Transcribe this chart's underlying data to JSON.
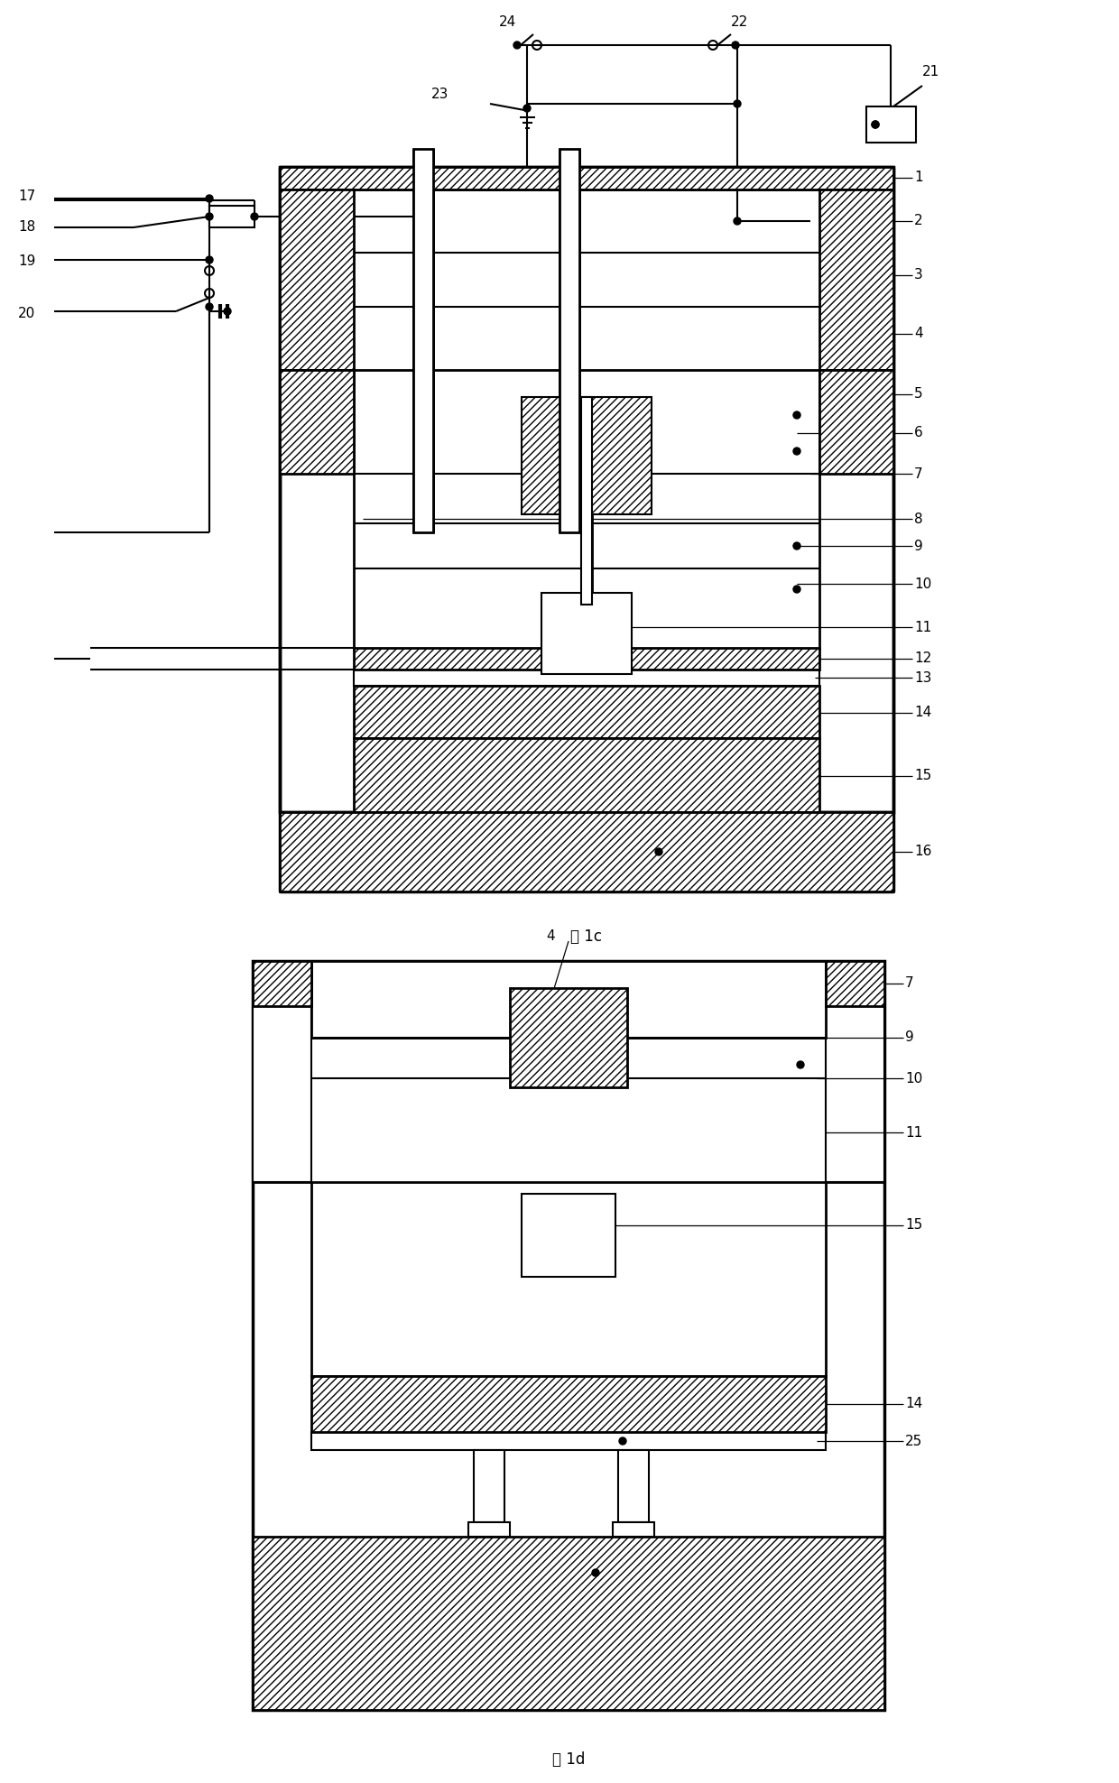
{
  "fig1c_caption": "图 1c",
  "fig1d_caption": "图 1d",
  "bg": "#ffffff"
}
